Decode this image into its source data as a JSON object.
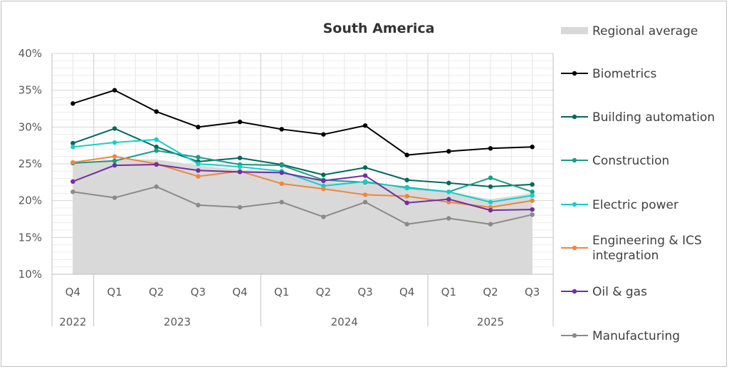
{
  "chart_data": {
    "type": "line",
    "title": "South America",
    "xlabel": "",
    "ylabel": "",
    "ylim": [
      10,
      40
    ],
    "y_ticks": [
      10,
      15,
      20,
      25,
      30,
      35,
      40
    ],
    "y_tick_labels": [
      "10%",
      "15%",
      "20%",
      "25%",
      "30%",
      "35%",
      "40%"
    ],
    "categories": [
      "Q4",
      "Q1",
      "Q2",
      "Q3",
      "Q4",
      "Q1",
      "Q2",
      "Q3",
      "Q4",
      "Q1",
      "Q2",
      "Q3"
    ],
    "year_groups": [
      {
        "label": "2022",
        "start": 0,
        "end": 0
      },
      {
        "label": "2023",
        "start": 1,
        "end": 4
      },
      {
        "label": "2024",
        "start": 5,
        "end": 8
      },
      {
        "label": "2025",
        "start": 9,
        "end": 11
      }
    ],
    "grid": true,
    "legend_position": "right",
    "area": {
      "name": "Regional average",
      "color": "#d9d9d9",
      "values": [
        25.2,
        25.6,
        25.6,
        24.8,
        24.2,
        24.0,
        22.6,
        22.4,
        21.6,
        21.2,
        20.2,
        21.0
      ]
    },
    "series": [
      {
        "name": "Biometrics",
        "color": "#000000",
        "values": [
          33.2,
          35.0,
          32.1,
          30.0,
          30.7,
          29.7,
          29.0,
          30.2,
          26.2,
          26.7,
          27.1,
          27.3
        ]
      },
      {
        "name": "Building automation",
        "color": "#00695c",
        "values": [
          27.8,
          29.8,
          27.3,
          25.3,
          25.8,
          24.9,
          23.5,
          24.5,
          22.8,
          22.4,
          21.9,
          22.2
        ]
      },
      {
        "name": "Construction",
        "color": "#1a9c87",
        "values": [
          25.1,
          25.4,
          26.8,
          25.9,
          24.9,
          24.8,
          22.8,
          22.5,
          21.8,
          21.2,
          23.1,
          21.2
        ]
      },
      {
        "name": "Electric power",
        "color": "#14cfc8",
        "values": [
          27.3,
          27.9,
          28.3,
          25.0,
          24.6,
          24.0,
          22.0,
          22.6,
          21.7,
          21.2,
          19.8,
          20.7
        ]
      },
      {
        "name": "Engineering & ICS integration",
        "color": "#f0863c",
        "values": [
          25.2,
          26.0,
          25.0,
          23.3,
          24.0,
          22.3,
          21.6,
          20.8,
          20.6,
          19.8,
          19.1,
          20.0
        ]
      },
      {
        "name": "Oil & gas",
        "color": "#7030a0",
        "values": [
          22.6,
          24.8,
          24.9,
          24.1,
          23.9,
          23.8,
          22.7,
          23.4,
          19.7,
          20.2,
          18.7,
          18.8
        ]
      },
      {
        "name": "Manufacturing",
        "color": "#8a8a8a",
        "values": [
          21.2,
          20.4,
          21.9,
          19.4,
          19.1,
          19.8,
          17.8,
          19.8,
          16.8,
          17.6,
          16.8,
          18.1
        ]
      }
    ],
    "legend": [
      "Regional average",
      "Biometrics",
      "Building automation",
      "Construction",
      "Electric power",
      "Engineering & ICS integration",
      "Oil & gas",
      "Manufacturing"
    ],
    "legend_wrapped": {
      "Engineering & ICS integration": [
        "Engineering & ICS",
        "integration"
      ]
    }
  }
}
